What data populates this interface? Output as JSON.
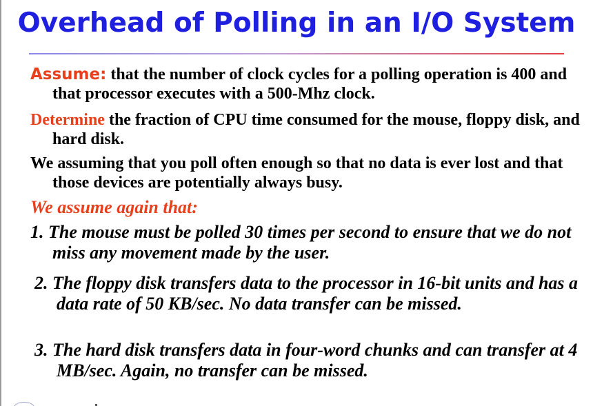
{
  "title": "Overhead of Polling in an I/O System",
  "paragraphs": {
    "assume_lead": "Assume:",
    "assume_text": " that the number of clock cycles for a polling operation is 400 and that processor executes with a 500-Mhz clock.",
    "determine_lead": "Determine",
    "determine_text": " the fraction of CPU time consumed for the mouse, floppy disk, and hard disk.",
    "we_assuming_text": "We assuming that you poll often enough so that no data is ever lost and that those devices are potentially always busy.",
    "assume_again": "We assume again that:"
  },
  "items": [
    "1. The mouse must be polled 30 times per second to ensure that we do not miss any movement made by the user.",
    "2. The floppy disk transfers data to the processor in 16-bit units and has a data rate of 50 KB/sec. No data transfer can be missed.",
    "3. The hard disk transfers data in four-word chunks and can transfer at 4 MB/sec. Again, no transfer can be missed."
  ]
}
